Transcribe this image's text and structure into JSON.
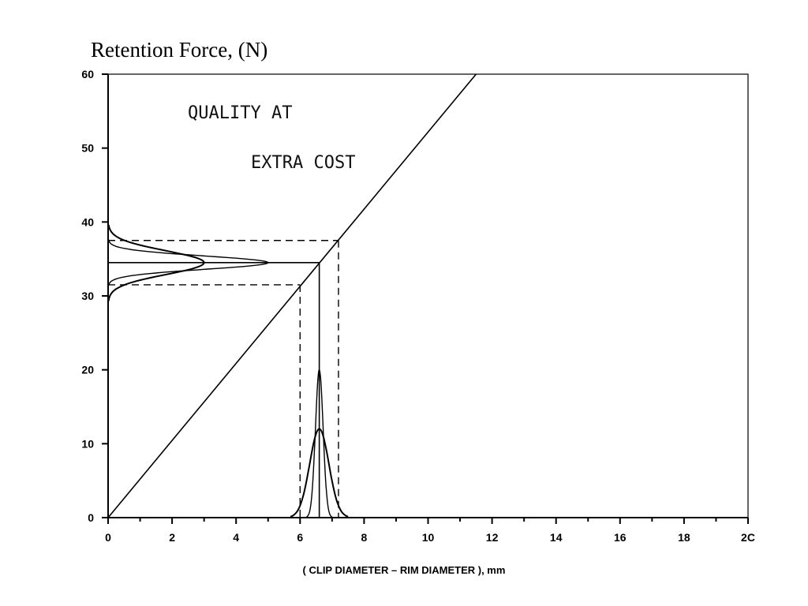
{
  "chart_data": {
    "type": "line",
    "title": "Retention Force, (N)",
    "xlabel": "( CLIP DIAMETER – RIM DIAMETER ), mm",
    "ylabel": "",
    "xlim": [
      0,
      20
    ],
    "ylim": [
      0,
      60
    ],
    "x_ticks": [
      0,
      2,
      4,
      6,
      8,
      10,
      12,
      14,
      16,
      18,
      20
    ],
    "x_tick_labels": [
      "0",
      "2",
      "4",
      "6",
      "8",
      "10",
      "12",
      "14",
      "16",
      "18",
      "2С"
    ],
    "y_ticks": [
      0,
      10,
      20,
      30,
      40,
      50,
      60
    ],
    "y_tick_labels": [
      "0",
      "10",
      "20",
      "30",
      "40",
      "50",
      "60"
    ],
    "grid": false,
    "annotations": [
      "QUALITY AT",
      "EXTRA COST"
    ],
    "relation_line": {
      "points": [
        [
          0,
          0
        ],
        [
          11.5,
          60
        ]
      ]
    },
    "nominal": {
      "x": 6.6,
      "y": 34.5
    },
    "dashed_limits": {
      "x": [
        6.0,
        7.2
      ],
      "y": [
        31.5,
        37.5
      ]
    },
    "x_distributions": [
      {
        "mean": 6.6,
        "sigma": 0.12,
        "peak": 20,
        "support": [
          6.2,
          7.0
        ]
      },
      {
        "mean": 6.6,
        "sigma": 0.3,
        "peak": 12,
        "support": [
          5.7,
          7.5
        ]
      }
    ],
    "y_distributions": [
      {
        "mean": 34.5,
        "sigma": 0.9,
        "peak_x": 5.0,
        "support": [
          31.0,
          38.0
        ]
      },
      {
        "mean": 34.5,
        "sigma": 1.6,
        "peak_x": 3.0,
        "support": [
          29.3,
          39.6
        ]
      }
    ]
  }
}
